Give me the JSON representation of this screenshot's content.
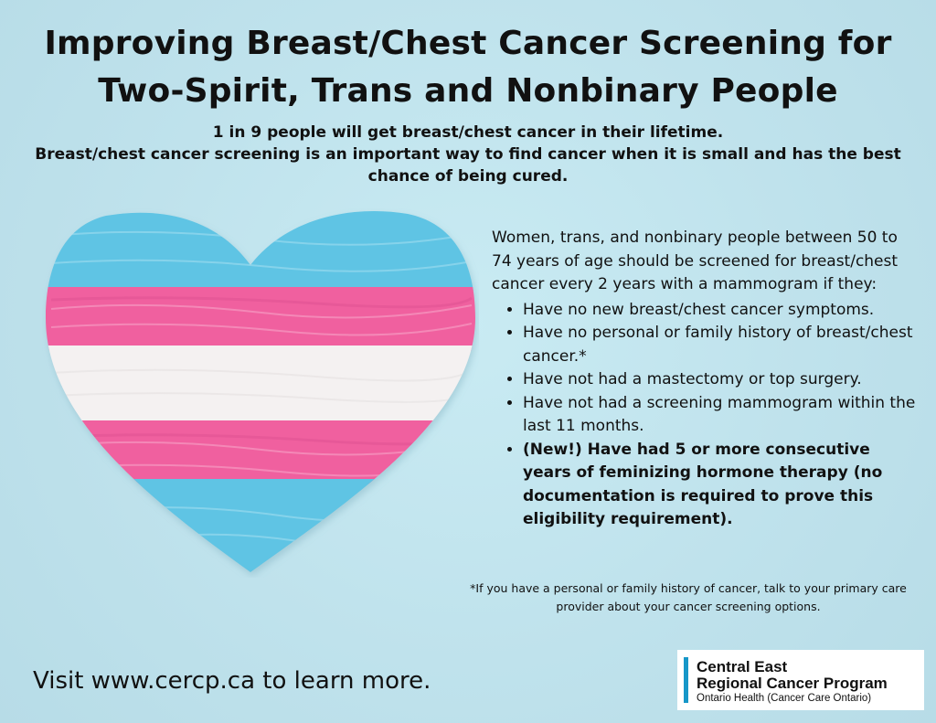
{
  "title": {
    "line1": "Improving Breast/Chest Cancer Screening for",
    "line2": "Two-Spirit, Trans and Nonbinary People"
  },
  "subheading": {
    "line1": "1 in 9 people will get breast/chest cancer in their lifetime.",
    "line2": "Breast/chest cancer screening is an important way to find cancer when it is small and has the best chance of being cured."
  },
  "heart_image": {
    "stripe_colors": [
      "#5ec4e4",
      "#f0609f",
      "#f4f1f1",
      "#f0609f",
      "#5ec4e4"
    ]
  },
  "eligibility": {
    "intro": "Women, trans, and nonbinary people between 50 to 74 years of age should be screened for breast/chest cancer every 2 years with a mammogram if they:",
    "items": [
      "Have no new breast/chest cancer symptoms.",
      "Have no personal or family history of breast/chest cancer.*",
      "Have not had a mastectomy or top surgery.",
      "Have not had a screening mammogram within the last 11 months.",
      "(New!) Have had 5 or more consecutive years of feminizing hormone therapy (no documentation is required to prove this eligibility requirement)."
    ]
  },
  "footnote": "*If you have a personal or family history of cancer, talk to your primary care provider about your cancer screening options.",
  "visit_text": "Visit www.cercp.ca to learn more.",
  "logo": {
    "line1": "Central East",
    "line2": "Regional Cancer Program",
    "line3": "Ontario Health (Cancer Care Ontario)",
    "accent_color": "#1697c8"
  },
  "background_color": "#bfe3ee"
}
